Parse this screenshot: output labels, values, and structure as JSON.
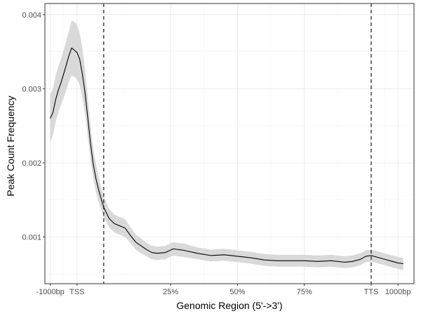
{
  "chart_data": {
    "type": "line",
    "title": "",
    "xlabel": "Genomic Region (5'->3')",
    "ylabel": "Peak Count Frequency",
    "x_ticks": [
      {
        "pos": -20,
        "label": "-1000bp"
      },
      {
        "pos": -10,
        "label": "TSS"
      },
      {
        "pos": 25,
        "label": "25%"
      },
      {
        "pos": 50,
        "label": "50%"
      },
      {
        "pos": 75,
        "label": "75%"
      },
      {
        "pos": 100,
        "label": "TTS"
      },
      {
        "pos": 110,
        "label": "1000bp"
      }
    ],
    "y_ticks": [
      0.001,
      0.002,
      0.003,
      0.004
    ],
    "y_tick_labels": [
      "0.001",
      "0.002",
      "0.003",
      "0.004"
    ],
    "xlim": [
      -22,
      116
    ],
    "ylim": [
      0.00037,
      0.00415
    ],
    "vlines": [
      0,
      100
    ],
    "grid": true,
    "colors": {
      "line": "#000000",
      "ribbon": "#d9d9d9",
      "grid_major": "#ebebeb",
      "grid_minor": "#f5f5f5",
      "border": "#333333"
    },
    "series": [
      {
        "x": [
          -20,
          -19,
          -18,
          -17,
          -16,
          -15,
          -14,
          -13,
          -12,
          -11,
          -10,
          -9,
          -8,
          -7,
          -6,
          -5,
          -4,
          -3,
          -2,
          -1,
          0,
          2,
          4,
          6,
          8,
          10,
          12,
          14,
          16,
          18,
          20,
          23,
          26,
          30,
          35,
          40,
          45,
          50,
          55,
          60,
          65,
          70,
          75,
          80,
          85,
          90,
          93,
          96,
          98,
          100,
          102,
          104,
          106,
          108,
          110,
          112
        ],
        "y": [
          0.0026,
          0.00268,
          0.00285,
          0.00298,
          0.00308,
          0.0032,
          0.00332,
          0.00345,
          0.00355,
          0.00352,
          0.00349,
          0.0034,
          0.0032,
          0.00295,
          0.00262,
          0.00228,
          0.002,
          0.0018,
          0.00165,
          0.00152,
          0.0014,
          0.00125,
          0.00118,
          0.00115,
          0.00112,
          0.00102,
          0.00093,
          0.00088,
          0.00083,
          0.00079,
          0.00078,
          0.00079,
          0.00084,
          0.00082,
          0.00078,
          0.00075,
          0.00076,
          0.00074,
          0.00072,
          0.00069,
          0.00068,
          0.00068,
          0.00068,
          0.00067,
          0.00068,
          0.00066,
          0.00067,
          0.0007,
          0.00074,
          0.00075,
          0.00073,
          0.00071,
          0.00069,
          0.00067,
          0.00065,
          0.00064
        ],
        "lower": [
          0.00228,
          0.00238,
          0.00255,
          0.00268,
          0.00278,
          0.00288,
          0.00298,
          0.0031,
          0.00318,
          0.00316,
          0.00313,
          0.00305,
          0.00288,
          0.00265,
          0.00236,
          0.00205,
          0.0018,
          0.00162,
          0.00148,
          0.00137,
          0.00126,
          0.00113,
          0.00106,
          0.00103,
          0.001,
          0.00092,
          0.00083,
          0.00078,
          0.00074,
          0.0007,
          0.00069,
          0.0007,
          0.00075,
          0.00073,
          0.0007,
          0.00067,
          0.00068,
          0.00066,
          0.00064,
          0.00061,
          0.0006,
          0.0006,
          0.0006,
          0.00059,
          0.0006,
          0.00058,
          0.00059,
          0.00062,
          0.00066,
          0.00067,
          0.00065,
          0.00063,
          0.00061,
          0.00059,
          0.00057,
          0.00055
        ],
        "upper": [
          0.00292,
          0.003,
          0.00318,
          0.0033,
          0.0034,
          0.00352,
          0.00365,
          0.00378,
          0.00392,
          0.0039,
          0.00386,
          0.00375,
          0.00355,
          0.00327,
          0.0029,
          0.00253,
          0.00222,
          0.002,
          0.00183,
          0.00168,
          0.00155,
          0.00138,
          0.0013,
          0.00127,
          0.00124,
          0.00113,
          0.00103,
          0.00098,
          0.00092,
          0.00088,
          0.00087,
          0.00088,
          0.00093,
          0.00091,
          0.00086,
          0.00083,
          0.00084,
          0.00082,
          0.0008,
          0.00077,
          0.00076,
          0.00076,
          0.00076,
          0.00075,
          0.00076,
          0.00074,
          0.00075,
          0.00078,
          0.00082,
          0.00083,
          0.00081,
          0.00079,
          0.00077,
          0.00075,
          0.00073,
          0.00072
        ]
      }
    ]
  }
}
